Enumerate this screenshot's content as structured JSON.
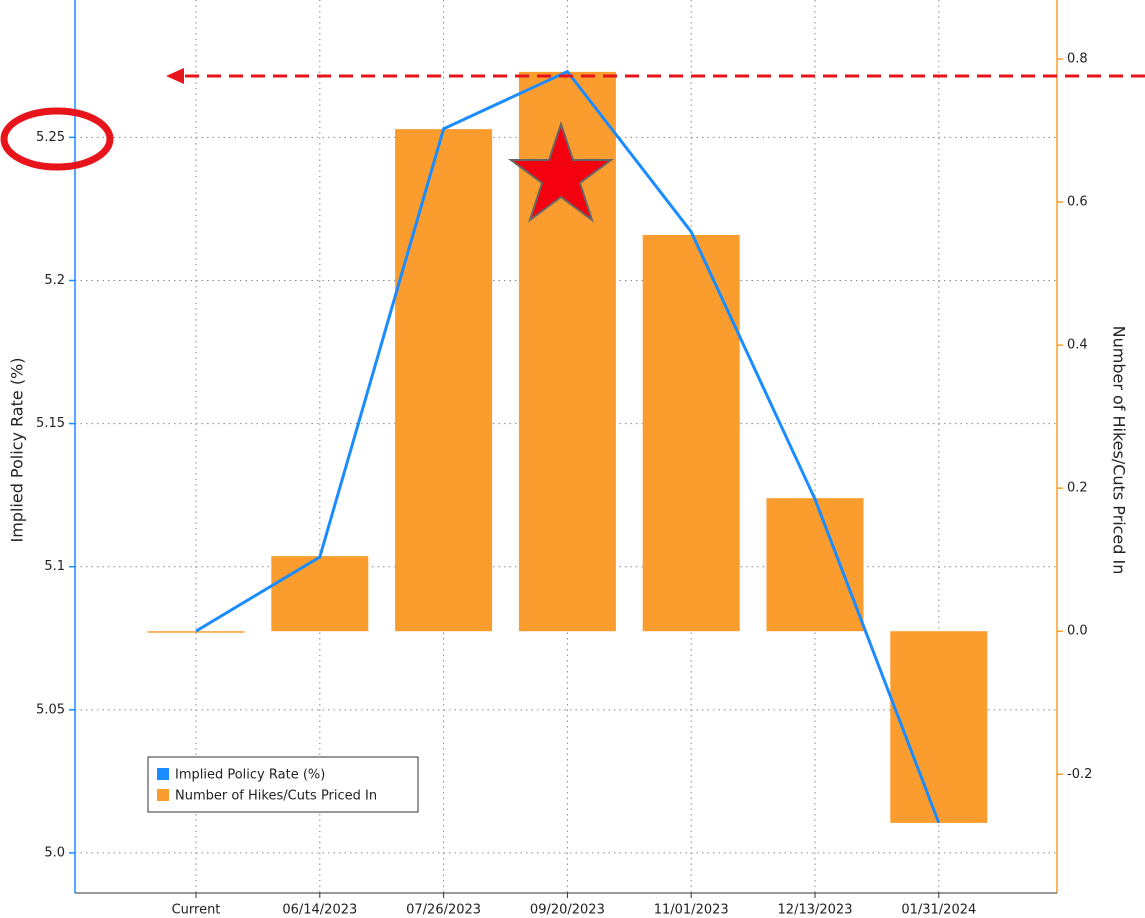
{
  "chart_data": {
    "type": "bar+line",
    "categories": [
      "Current",
      "06/14/2023",
      "07/26/2023",
      "09/20/2023",
      "11/01/2023",
      "12/13/2023",
      "01/31/2024"
    ],
    "ylabel": "Implied Policy Rate (%)",
    "y2label": "Number of Hikes/Cuts Priced In",
    "ylim": [
      4.986,
      5.298
    ],
    "yticks": [
      {
        "value": 5,
        "label": "5.0"
      },
      5.05,
      5.1,
      5.15,
      5.2,
      5.25
    ],
    "y2lim": [
      -0.366,
      0.8825
    ],
    "y2ticks": [
      -0.2,
      {
        "value": 0,
        "label": "0.0"
      },
      0.2,
      0.4,
      0.6,
      0.8
    ],
    "grid": true,
    "legend": "lower left",
    "series": [
      {
        "name": "Implied Policy Rate (%)",
        "type": "line",
        "color": "#1a8cff",
        "axis": "y",
        "values": [
          5.0775,
          5.1034,
          5.253,
          5.273,
          5.217,
          5.1236,
          5.0105
        ]
      },
      {
        "name": "Number of Hikes/Cuts Priced In",
        "type": "bar",
        "color": "#fb9d2e",
        "axis": "y2",
        "values": [
          0,
          0.105,
          0.702,
          0.782,
          0.554,
          0.186,
          -0.268
        ]
      }
    ]
  }
}
